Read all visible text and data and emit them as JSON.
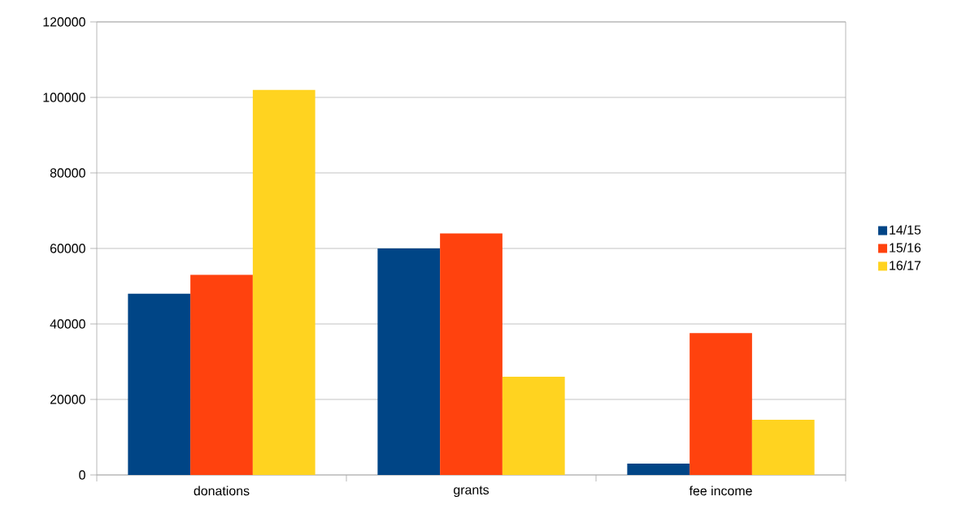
{
  "chart_data": {
    "type": "bar",
    "categories": [
      "donations",
      "grants",
      "fee income"
    ],
    "series": [
      {
        "name": "14/15",
        "color": "#004586",
        "values": [
          48000,
          60000,
          3000
        ]
      },
      {
        "name": "15/16",
        "color": "#ff420e",
        "values": [
          53000,
          64000,
          37600
        ]
      },
      {
        "name": "16/17",
        "color": "#ffd320",
        "values": [
          102000,
          26000,
          14600
        ]
      }
    ],
    "ylim": [
      0,
      120000
    ],
    "yticks": [
      0,
      20000,
      40000,
      60000,
      80000,
      100000,
      120000
    ],
    "grid": "y",
    "legend": "right"
  }
}
